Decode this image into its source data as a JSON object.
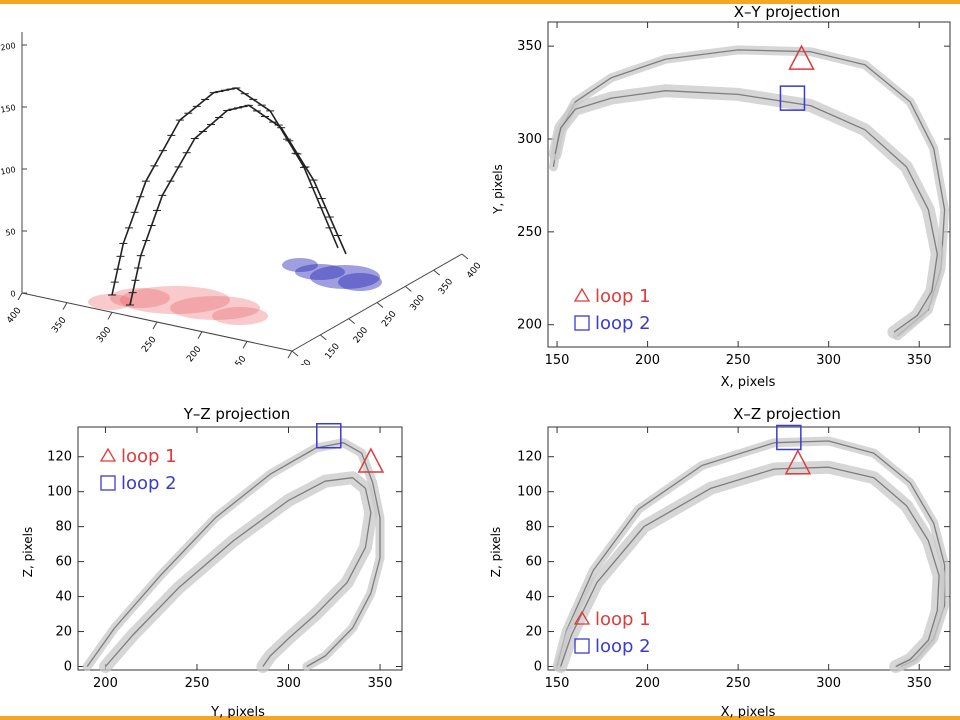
{
  "colors": {
    "accent_bar": "#f5a623",
    "loop1": "#e03a3a",
    "loop2": "#3a3ad6",
    "loop_band": "#c8c8c8",
    "loop_edge": "#6e6e6e",
    "axis": "#333333"
  },
  "panel_3d": {
    "z_ticks": [
      "0",
      "50",
      "100",
      "150",
      "200"
    ],
    "left_ticks": [
      "400",
      "350",
      "300",
      "250",
      "200",
      "150",
      "100"
    ],
    "right_ticks": [
      "100",
      "150",
      "200",
      "250",
      "300",
      "350",
      "400"
    ],
    "loop_a": [
      [
        0.0,
        0
      ],
      [
        0.05,
        42
      ],
      [
        0.15,
        92
      ],
      [
        0.3,
        140
      ],
      [
        0.45,
        160
      ],
      [
        0.55,
        162
      ],
      [
        0.7,
        140
      ],
      [
        0.85,
        90
      ],
      [
        1.0,
        20
      ]
    ],
    "loop_b": [
      [
        0.0,
        0
      ],
      [
        0.05,
        40
      ],
      [
        0.15,
        88
      ],
      [
        0.3,
        132
      ],
      [
        0.45,
        152
      ],
      [
        0.55,
        154
      ],
      [
        0.7,
        132
      ],
      [
        0.85,
        85
      ],
      [
        1.0,
        20
      ]
    ]
  },
  "legend": {
    "loop1": "loop 1",
    "loop2": "loop 2"
  },
  "chart_data": [
    {
      "type": "line",
      "title": "X–Y projection",
      "xlabel": "X, pixels",
      "ylabel": "Y, pixels",
      "xlim": [
        145,
        367
      ],
      "ylim": [
        188,
        363
      ],
      "xticks": [
        150,
        200,
        250,
        300,
        350
      ],
      "yticks": [
        200,
        250,
        300,
        350
      ],
      "legend_position": "bottom-left",
      "series": [
        {
          "name": "loop 1",
          "x": [
            148,
            151,
            160,
            180,
            210,
            250,
            290,
            320,
            345,
            358,
            364,
            362,
            355,
            338
          ],
          "y": [
            285,
            303,
            320,
            333,
            343,
            348,
            347,
            340,
            320,
            295,
            262,
            230,
            208,
            194
          ]
        },
        {
          "name": "loop 2",
          "x": [
            149,
            152,
            160,
            180,
            210,
            250,
            290,
            320,
            343,
            355,
            360,
            357,
            349,
            336
          ],
          "y": [
            292,
            306,
            316,
            322,
            326,
            324,
            318,
            305,
            285,
            262,
            238,
            218,
            205,
            196
          ]
        }
      ],
      "markers": [
        {
          "series": "loop 1",
          "shape": "triangle",
          "x": 285,
          "y": 343
        },
        {
          "series": "loop 2",
          "shape": "square",
          "x": 280,
          "y": 322
        }
      ]
    },
    {
      "type": "line",
      "title": "Y–Z projection",
      "xlabel": "Y, pixels",
      "ylabel": "Z, pixels",
      "xlim": [
        185,
        362
      ],
      "ylim": [
        -2,
        137
      ],
      "xticks": [
        200,
        250,
        300,
        350
      ],
      "yticks": [
        0,
        20,
        40,
        60,
        80,
        100,
        120
      ],
      "legend_position": "top-left",
      "series": [
        {
          "name": "loop 1",
          "x": [
            190,
            205,
            230,
            260,
            290,
            315,
            330,
            340,
            346,
            350,
            350,
            345,
            335,
            320,
            310
          ],
          "y": [
            0,
            22,
            52,
            85,
            110,
            125,
            128,
            122,
            105,
            85,
            62,
            42,
            22,
            6,
            0
          ]
        },
        {
          "name": "loop 2",
          "x": [
            200,
            215,
            240,
            270,
            300,
            320,
            335,
            342,
            345,
            342,
            332,
            315,
            300,
            290,
            286
          ],
          "y": [
            0,
            18,
            45,
            72,
            95,
            106,
            108,
            102,
            88,
            68,
            48,
            30,
            16,
            6,
            0
          ]
        }
      ],
      "markers": [
        {
          "series": "loop 1",
          "shape": "triangle",
          "x": 345,
          "y": 117
        },
        {
          "series": "loop 2",
          "shape": "square",
          "x": 322,
          "y": 132
        }
      ]
    },
    {
      "type": "line",
      "title": "X–Z projection",
      "xlabel": "X, pixels",
      "ylabel": "Z, pixels",
      "xlim": [
        145,
        367
      ],
      "ylim": [
        -2,
        137
      ],
      "xticks": [
        150,
        200,
        250,
        300,
        350
      ],
      "yticks": [
        0,
        20,
        40,
        60,
        80,
        100,
        120
      ],
      "legend_position": "bottom-left",
      "series": [
        {
          "name": "loop 1",
          "x": [
            150,
            155,
            170,
            195,
            230,
            270,
            300,
            325,
            345,
            358,
            364,
            364,
            358,
            348,
            340
          ],
          "y": [
            0,
            20,
            55,
            90,
            115,
            128,
            129,
            122,
            105,
            82,
            58,
            35,
            16,
            4,
            0
          ]
        },
        {
          "name": "loop 2",
          "x": [
            152,
            158,
            172,
            198,
            235,
            270,
            300,
            325,
            343,
            355,
            361,
            360,
            355,
            345,
            337
          ],
          "y": [
            0,
            18,
            48,
            80,
            102,
            113,
            114,
            108,
            92,
            72,
            52,
            32,
            15,
            4,
            0
          ]
        }
      ],
      "markers": [
        {
          "series": "loop 1",
          "shape": "triangle",
          "x": 283,
          "y": 116
        },
        {
          "series": "loop 2",
          "shape": "square",
          "x": 278,
          "y": 131
        }
      ]
    }
  ]
}
